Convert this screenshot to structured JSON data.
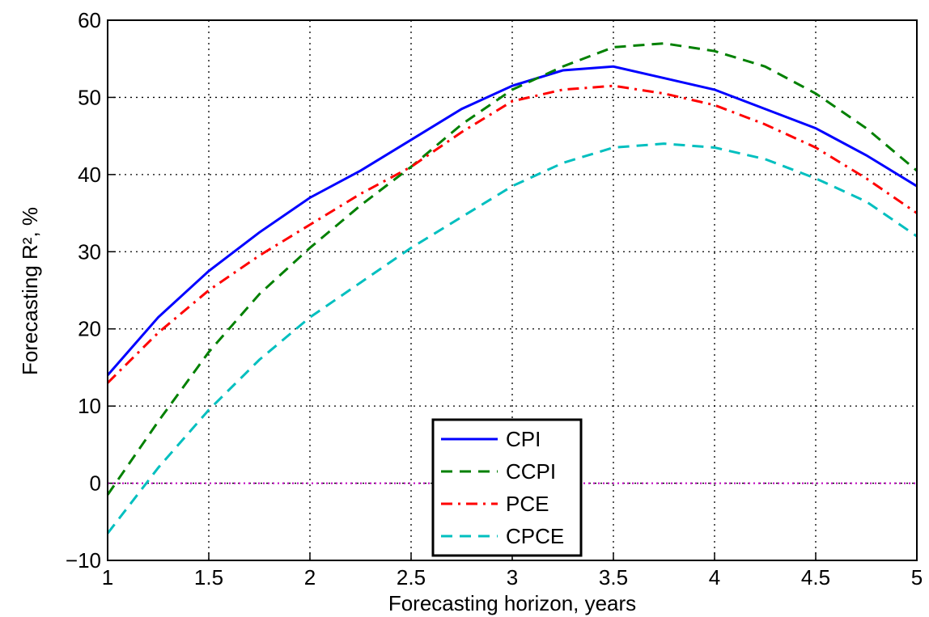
{
  "chart_data": {
    "type": "line",
    "x_label": "Forecasting horizon, years",
    "y_label": "Forecasting R², %",
    "x": [
      1,
      1.25,
      1.5,
      1.75,
      2,
      2.25,
      2.5,
      2.75,
      3,
      3.25,
      3.5,
      3.75,
      4,
      4.25,
      4.5,
      4.75,
      5
    ],
    "series": [
      {
        "name": "CPI",
        "color": "#0000ff",
        "style": "solid",
        "values": [
          14,
          21.5,
          27.5,
          32.5,
          37,
          40.5,
          44.5,
          48.5,
          51.5,
          53.5,
          54,
          52.5,
          51,
          48.5,
          46,
          42.5,
          38.5
        ]
      },
      {
        "name": "CCPI",
        "color": "#008000",
        "style": "dashed",
        "values": [
          -1.5,
          8,
          17,
          24.5,
          30.5,
          36,
          41,
          46.5,
          51,
          54,
          56.5,
          57,
          56,
          54,
          50.5,
          46,
          40.5
        ]
      },
      {
        "name": "PCE",
        "color": "#ff0000",
        "style": "dashdot",
        "values": [
          13,
          19.5,
          25,
          29.5,
          33.5,
          37.5,
          41,
          45.5,
          49.5,
          51,
          51.5,
          50.5,
          49,
          46.5,
          43.5,
          39.5,
          35
        ]
      },
      {
        "name": "CPCE",
        "color": "#00bfbf",
        "style": "dashed",
        "values": [
          -6.5,
          2,
          9.5,
          16,
          21.5,
          26,
          30.5,
          34.5,
          38.5,
          41.5,
          43.5,
          44,
          43.5,
          42,
          39.5,
          36.5,
          32
        ]
      }
    ],
    "xlim": [
      1,
      5
    ],
    "xticks": [
      1,
      1.5,
      2,
      2.5,
      3,
      3.5,
      4,
      4.5,
      5
    ],
    "ylim": [
      -10,
      60
    ],
    "yticks": [
      {
        "value": -10,
        "label": "−10"
      },
      0,
      10,
      20,
      30,
      40,
      50,
      60
    ],
    "grid": true,
    "legend": "lower center",
    "reference_line": {
      "value": 0,
      "color": "#bf00bf"
    }
  }
}
